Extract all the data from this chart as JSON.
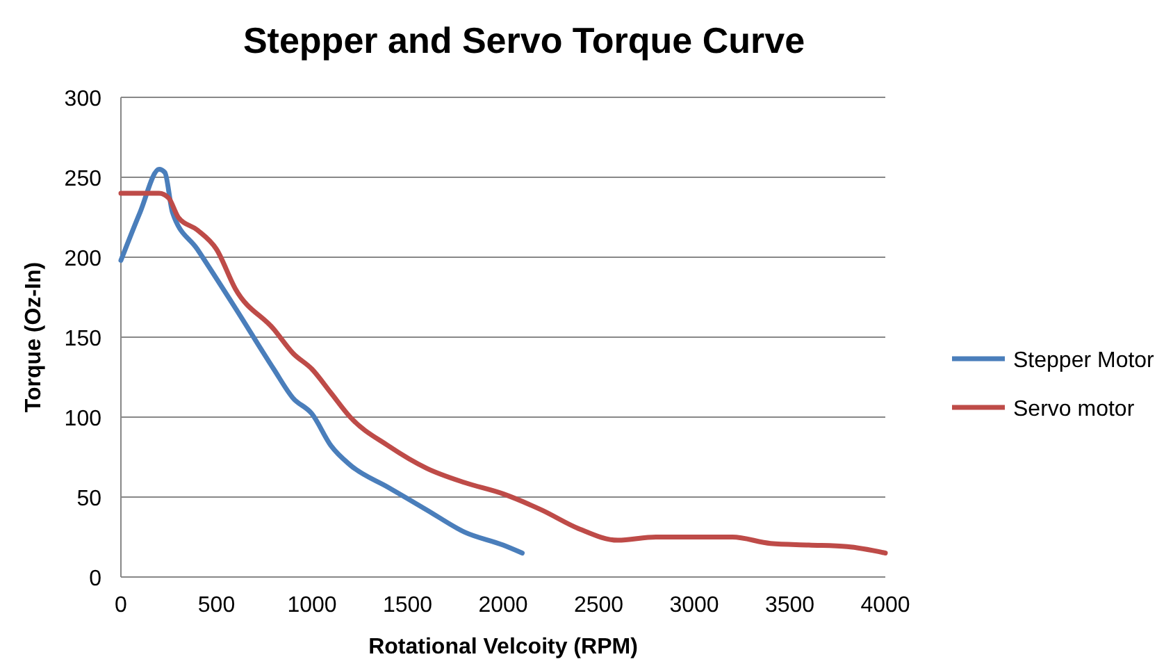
{
  "chart_data": {
    "type": "line",
    "title": "Stepper and Servo Torque Curve",
    "xlabel": "Rotational Velcoity (RPM)",
    "ylabel": "Torque (Oz-In)",
    "xlim": [
      0,
      4000
    ],
    "xticks": [
      0,
      500,
      1000,
      1500,
      2000,
      2500,
      3000,
      3500,
      4000
    ],
    "ylim": [
      0,
      300
    ],
    "yticks": [
      0,
      50,
      100,
      150,
      200,
      250,
      300
    ],
    "grid": "y",
    "legend": "right",
    "line_style": "solid",
    "marker": "none",
    "series": [
      {
        "name": "Stepper Motor",
        "color": "#4a7ebb",
        "x": [
          0,
          100,
          200,
          230,
          270,
          400,
          600,
          800,
          900,
          1000,
          1100,
          1200,
          1400,
          1600,
          1800,
          2000,
          2100
        ],
        "values": [
          198,
          228,
          255,
          253,
          228,
          205,
          168,
          130,
          112,
          102,
          82,
          70,
          56,
          42,
          28,
          20,
          15
        ]
      },
      {
        "name": "Servo motor",
        "color": "#be4b48",
        "x": [
          0,
          200,
          250,
          300,
          400,
          500,
          600,
          800,
          900,
          1000,
          1100,
          1200,
          1400,
          1600,
          1800,
          2000,
          2200,
          2400,
          2600,
          2800,
          3000,
          3200,
          3400,
          3600,
          3800,
          4000
        ],
        "values": [
          240,
          240,
          237,
          225,
          217,
          205,
          180,
          155,
          140,
          130,
          115,
          100,
          82,
          68,
          59,
          52,
          42,
          30,
          23,
          25,
          25,
          25,
          21,
          20,
          19,
          15
        ]
      }
    ]
  }
}
